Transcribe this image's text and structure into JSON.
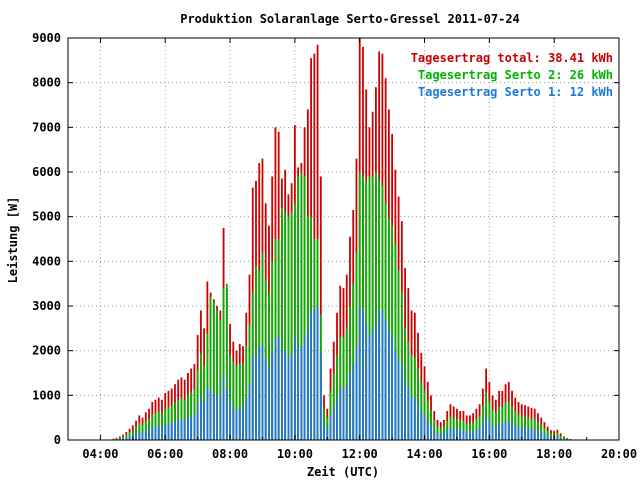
{
  "chart_data": {
    "type": "bar",
    "title": "Produktion Solaranlage Serto-Gressel 2011-07-24",
    "xlabel": "Zeit (UTC)",
    "ylabel": "Leistung [W]",
    "xlim_hours": [
      3,
      20
    ],
    "ylim": [
      0,
      9000
    ],
    "x_ticks": [
      "04:00",
      "06:00",
      "08:00",
      "10:00",
      "12:00",
      "14:00",
      "16:00",
      "18:00",
      "20:00"
    ],
    "y_ticks": [
      "0",
      "1000",
      "2000",
      "3000",
      "4000",
      "5000",
      "6000",
      "7000",
      "8000",
      "9000"
    ],
    "grid": true,
    "legend_position": "top-right",
    "colors": {
      "total": "#cc0000",
      "serto2": "#00b300",
      "serto1": "#1f78d6"
    },
    "legend": [
      {
        "key": "total",
        "label": "Tagesertrag total: 38.41 kWh"
      },
      {
        "key": "serto2",
        "label": "Tagesertrag Serto 2: 26 kWh"
      },
      {
        "key": "serto1",
        "label": "Tagesertrag Serto 1: 12 kWh"
      }
    ],
    "x_hours": [
      4.4,
      4.5,
      4.6,
      4.7,
      4.8,
      4.9,
      5.0,
      5.1,
      5.2,
      5.3,
      5.4,
      5.5,
      5.6,
      5.7,
      5.8,
      5.9,
      6.0,
      6.1,
      6.2,
      6.3,
      6.4,
      6.5,
      6.6,
      6.7,
      6.8,
      6.9,
      7.0,
      7.1,
      7.2,
      7.3,
      7.4,
      7.5,
      7.6,
      7.7,
      7.8,
      7.9,
      8.0,
      8.1,
      8.2,
      8.3,
      8.4,
      8.5,
      8.6,
      8.7,
      8.8,
      8.9,
      9.0,
      9.1,
      9.2,
      9.3,
      9.4,
      9.5,
      9.6,
      9.7,
      9.8,
      9.9,
      10.0,
      10.1,
      10.2,
      10.3,
      10.4,
      10.5,
      10.6,
      10.7,
      10.8,
      10.9,
      11.0,
      11.1,
      11.2,
      11.3,
      11.4,
      11.5,
      11.6,
      11.7,
      11.8,
      11.9,
      12.0,
      12.1,
      12.2,
      12.3,
      12.4,
      12.5,
      12.6,
      12.7,
      12.8,
      12.9,
      13.0,
      13.1,
      13.2,
      13.3,
      13.4,
      13.5,
      13.6,
      13.7,
      13.8,
      13.9,
      14.0,
      14.1,
      14.2,
      14.3,
      14.4,
      14.5,
      14.6,
      14.7,
      14.8,
      14.9,
      15.0,
      15.1,
      15.2,
      15.3,
      15.4,
      15.5,
      15.6,
      15.7,
      15.8,
      15.9,
      16.0,
      16.1,
      16.2,
      16.3,
      16.4,
      16.5,
      16.6,
      16.7,
      16.8,
      16.9,
      17.0,
      17.1,
      17.2,
      17.3,
      17.4,
      17.5,
      17.6,
      17.7,
      17.8,
      17.9,
      18.0,
      18.1,
      18.2,
      18.3,
      18.4,
      18.5,
      18.6
    ],
    "series": [
      {
        "key": "total",
        "name": "Tagesertrag total: 38.41 kWh",
        "values": [
          30,
          50,
          80,
          120,
          180,
          250,
          330,
          430,
          550,
          500,
          620,
          700,
          850,
          900,
          950,
          900,
          1050,
          1100,
          1150,
          1250,
          1350,
          1400,
          1350,
          1500,
          1600,
          1700,
          2350,
          2900,
          2500,
          3550,
          3300,
          3150,
          3000,
          2900,
          4750,
          3400,
          2600,
          2200,
          2000,
          2150,
          2100,
          2850,
          3700,
          5650,
          5800,
          6200,
          6300,
          5300,
          4800,
          5900,
          7000,
          6900,
          5850,
          6050,
          5500,
          5750,
          7050,
          6100,
          6200,
          7000,
          7400,
          8550,
          8650,
          8850,
          5900,
          1000,
          700,
          1600,
          2200,
          2850,
          3450,
          3400,
          3700,
          4550,
          5150,
          6300,
          9000,
          8800,
          7850,
          7000,
          7350,
          7900,
          8700,
          8650,
          8100,
          7400,
          6850,
          6050,
          5450,
          4900,
          3850,
          3400,
          2900,
          2850,
          2400,
          1950,
          1650,
          1300,
          1000,
          650,
          450,
          400,
          450,
          650,
          800,
          750,
          700,
          650,
          650,
          550,
          550,
          600,
          700,
          800,
          1150,
          1600,
          1300,
          1000,
          900,
          1100,
          1100,
          1250,
          1300,
          1100,
          950,
          850,
          800,
          780,
          750,
          720,
          700,
          600,
          500,
          400,
          300,
          220,
          200,
          230,
          150,
          80,
          40,
          20
        ]
      },
      {
        "key": "serto2",
        "name": "Tagesertrag Serto 2: 26 kWh",
        "values": [
          20,
          35,
          55,
          80,
          120,
          170,
          220,
          290,
          370,
          340,
          420,
          470,
          570,
          600,
          640,
          600,
          700,
          740,
          770,
          840,
          900,
          940,
          900,
          1000,
          1070,
          1140,
          1570,
          1940,
          1670,
          2380,
          3200,
          3100,
          2900,
          2700,
          3400,
          3500,
          1900,
          1750,
          1650,
          1700,
          1700,
          2100,
          2600,
          3300,
          3900,
          3800,
          4200,
          3600,
          3300,
          4000,
          4500,
          4500,
          5200,
          5100,
          5000,
          5100,
          5300,
          5900,
          6000,
          5900,
          5000,
          5000,
          4500,
          4500,
          2800,
          700,
          500,
          1100,
          1500,
          1900,
          2300,
          2300,
          2500,
          3000,
          3500,
          4200,
          6000,
          5900,
          5800,
          5900,
          5900,
          6000,
          5850,
          5700,
          5300,
          4950,
          4800,
          4400,
          3800,
          3300,
          2500,
          2200,
          1900,
          1850,
          1600,
          1300,
          1100,
          870,
          670,
          450,
          300,
          270,
          300,
          430,
          530,
          500,
          470,
          430,
          430,
          370,
          370,
          400,
          470,
          530,
          770,
          1070,
          870,
          670,
          600,
          740,
          740,
          840,
          870,
          740,
          640,
          570,
          530,
          520,
          500,
          480,
          470,
          400,
          330,
          270,
          200,
          150,
          130,
          150,
          100,
          55,
          25,
          12
        ]
      },
      {
        "key": "serto1",
        "name": "Tagesertrag Serto 1: 12 kWh",
        "values": [
          10,
          17,
          27,
          40,
          60,
          85,
          110,
          145,
          185,
          170,
          210,
          235,
          285,
          300,
          320,
          300,
          350,
          370,
          390,
          420,
          450,
          470,
          450,
          500,
          540,
          570,
          790,
          970,
          840,
          1200,
          1100,
          1060,
          1000,
          970,
          1450,
          1150,
          870,
          740,
          670,
          720,
          700,
          950,
          1250,
          1880,
          1900,
          2100,
          2100,
          1800,
          1600,
          1950,
          2300,
          2300,
          2000,
          2000,
          1850,
          1950,
          2300,
          2050,
          2100,
          2300,
          2500,
          2900,
          2900,
          3000,
          1950,
          330,
          230,
          540,
          740,
          950,
          1150,
          1150,
          1250,
          1500,
          1700,
          2100,
          3000,
          2900,
          2600,
          2350,
          2450,
          2600,
          2900,
          2900,
          2700,
          2450,
          2300,
          2000,
          1800,
          1650,
          1300,
          1150,
          970,
          950,
          800,
          650,
          550,
          430,
          330,
          220,
          150,
          135,
          150,
          220,
          270,
          250,
          230,
          215,
          215,
          185,
          185,
          200,
          230,
          270,
          380,
          530,
          430,
          330,
          300,
          370,
          370,
          420,
          430,
          370,
          320,
          290,
          270,
          260,
          250,
          240,
          235,
          200,
          165,
          135,
          100,
          75,
          65,
          75,
          50,
          27,
          13,
          6
        ]
      }
    ]
  }
}
